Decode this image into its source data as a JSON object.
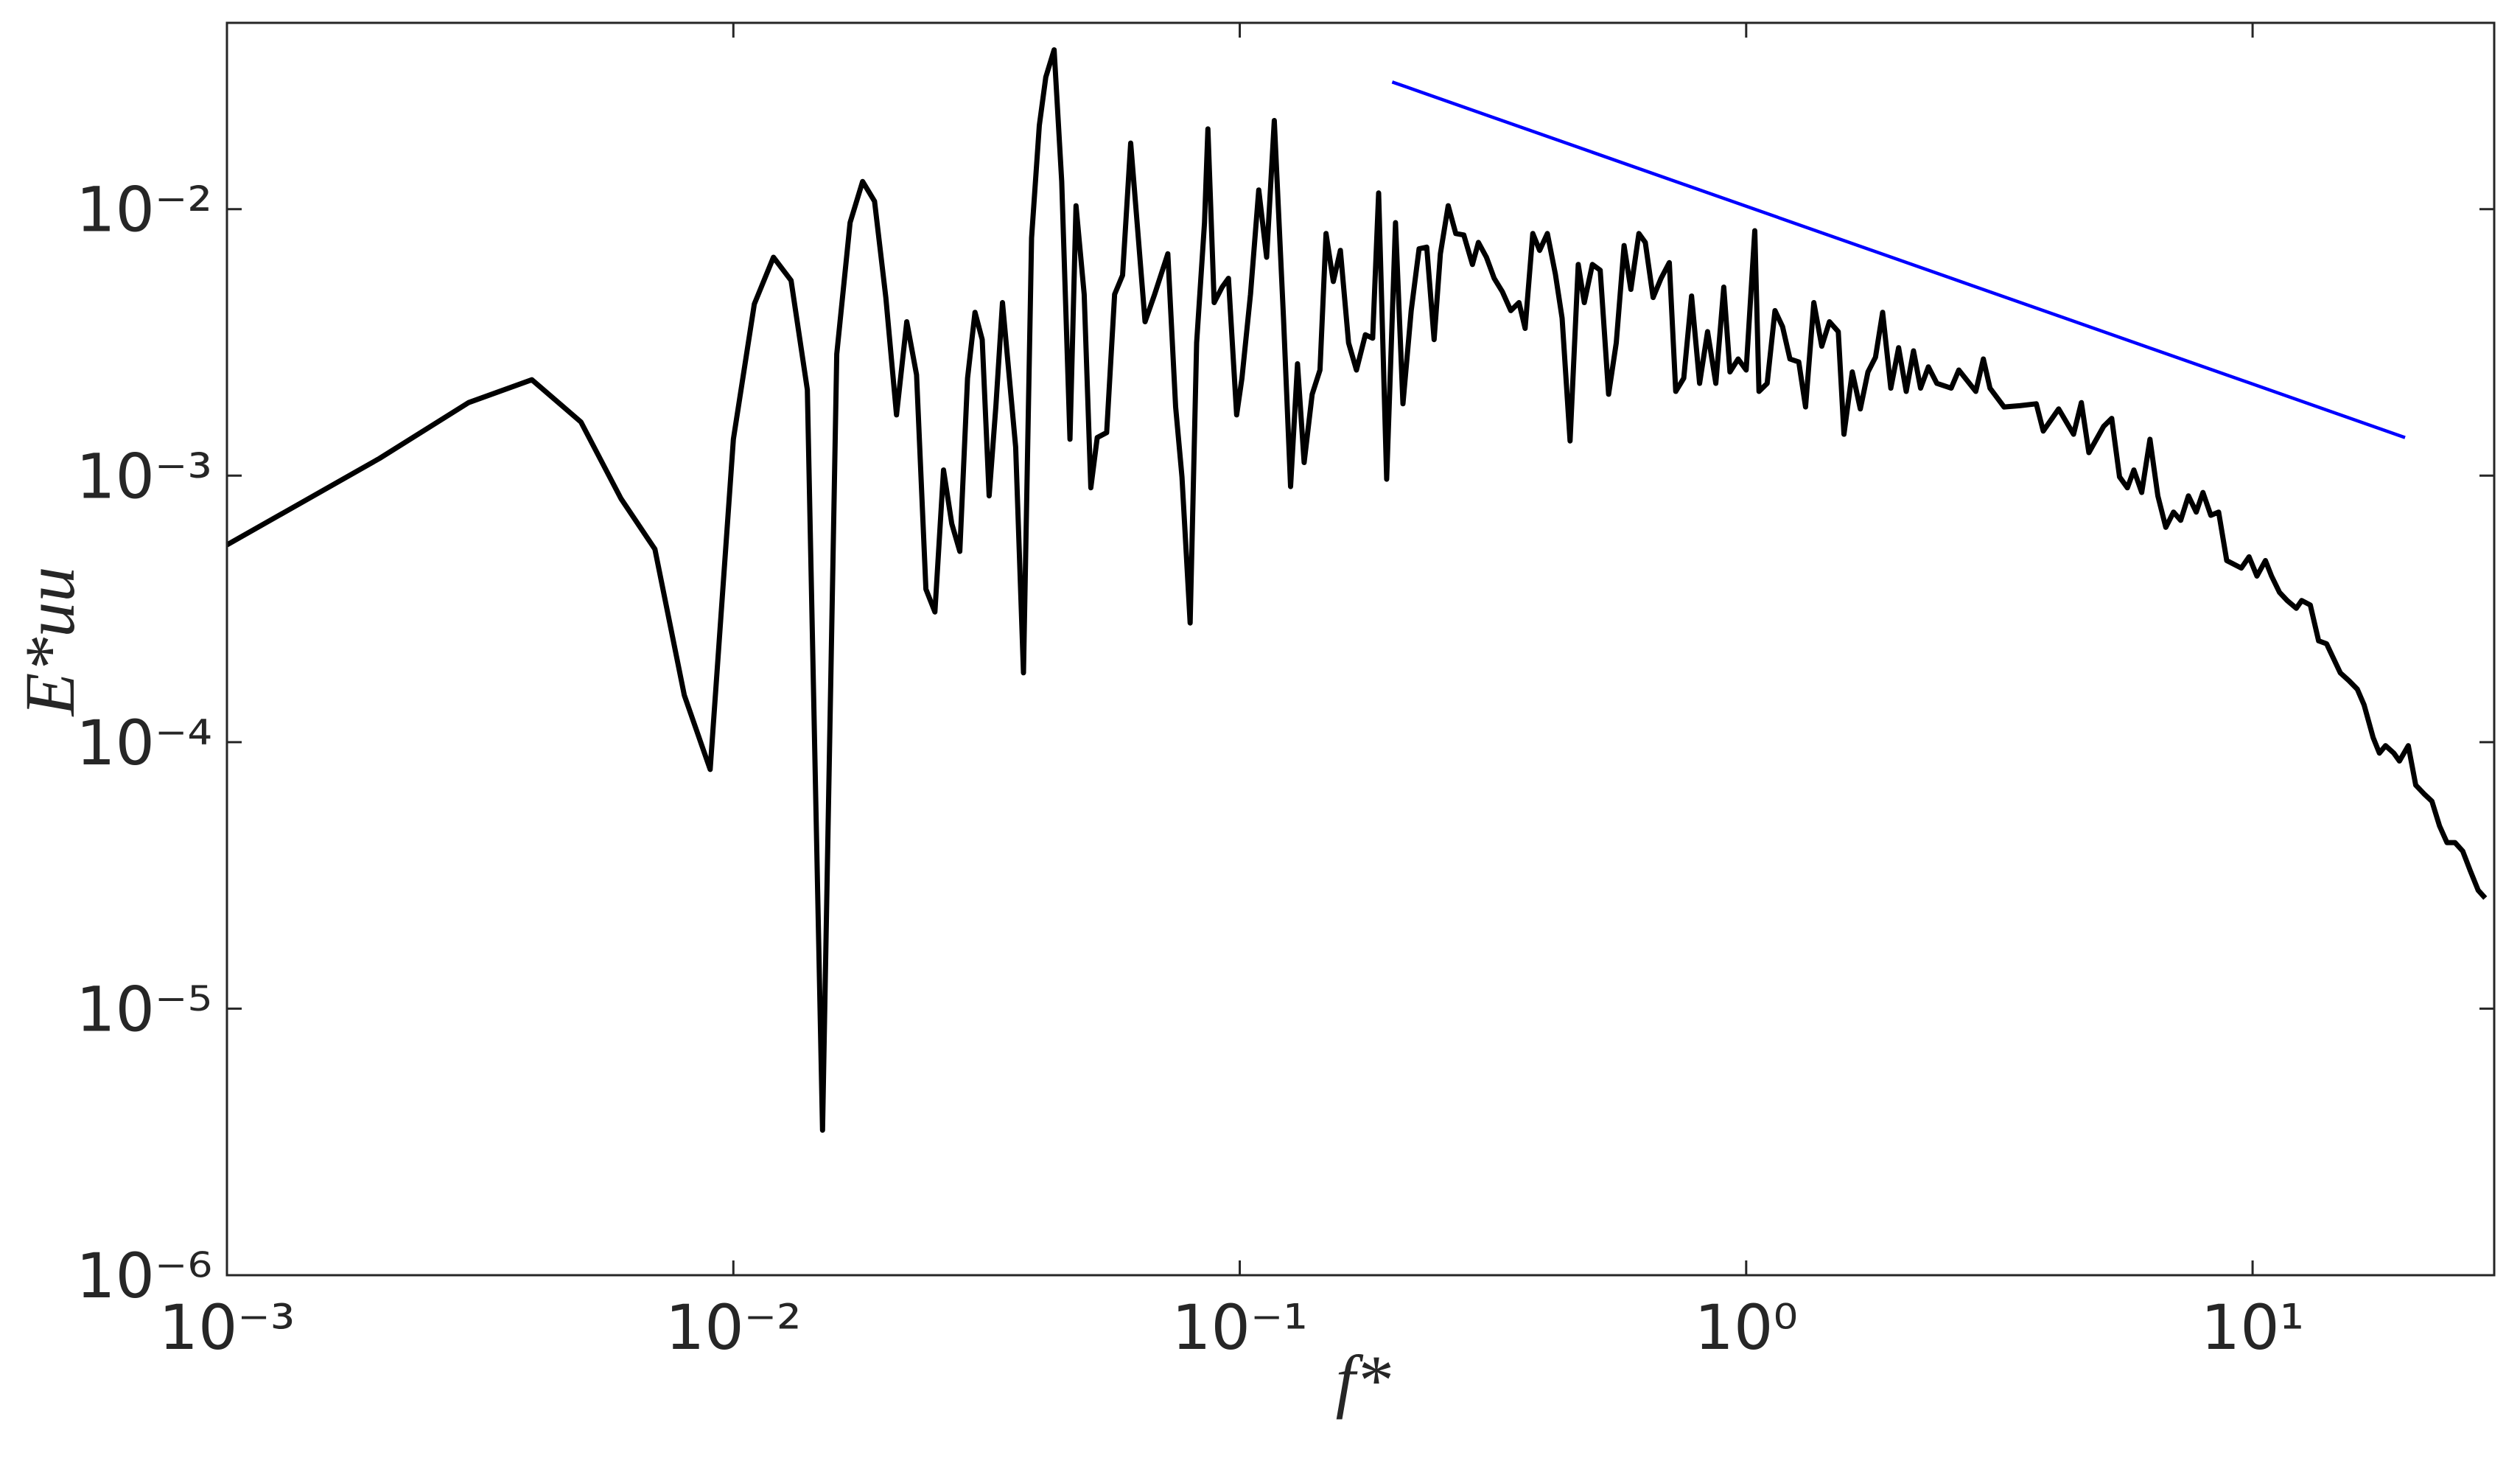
{
  "chart_data": {
    "type": "line",
    "xlabel": "f*",
    "ylabel": "E*uu",
    "xscale": "log",
    "yscale": "log",
    "grid": false,
    "xlim": [
      0.001,
      30
    ],
    "ylim": [
      1e-06,
      0.05
    ],
    "xticks": [
      {
        "value": 0.001,
        "label": "10⁻³"
      },
      {
        "value": 0.01,
        "label": "10⁻²"
      },
      {
        "value": 0.1,
        "label": "10⁻¹"
      },
      {
        "value": 1,
        "label": "10⁰"
      },
      {
        "value": 10,
        "label": "10¹"
      }
    ],
    "yticks": [
      {
        "value": 1e-06,
        "label": "10⁻⁶"
      },
      {
        "value": 1e-05,
        "label": "10⁻⁵"
      },
      {
        "value": 0.0001,
        "label": "10⁻⁴"
      },
      {
        "value": 0.001,
        "label": "10⁻³"
      },
      {
        "value": 0.01,
        "label": "10⁻²"
      }
    ],
    "series": [
      {
        "color": "#000000",
        "x": [
          0.001,
          0.002,
          0.003,
          0.004,
          0.005,
          0.006,
          0.007,
          0.008,
          0.009,
          0.01,
          0.011,
          0.012,
          0.013,
          0.014,
          0.015,
          0.016,
          0.017,
          0.018,
          0.019,
          0.02,
          0.021,
          0.022,
          0.023,
          0.024,
          0.025,
          0.026,
          0.027,
          0.028,
          0.029,
          0.03,
          0.031,
          0.032,
          0.033,
          0.034,
          0.0361,
          0.0374,
          0.0388,
          0.0402,
          0.0414,
          0.043,
          0.0445,
          0.0462,
          0.0475,
          0.0493,
          0.0508,
          0.0523,
          0.0546,
          0.0566,
          0.0587,
          0.0609,
          0.0627,
          0.065,
          0.0679,
          0.0721,
          0.0747,
          0.0769,
          0.0798,
          0.0822,
          0.0852,
          0.0865,
          0.089,
          0.0923,
          0.095,
          0.0986,
          0.101,
          0.105,
          0.109,
          0.113,
          0.117,
          0.122,
          0.126,
          0.13,
          0.134,
          0.139,
          0.144,
          0.148,
          0.153,
          0.158,
          0.164,
          0.17,
          0.177,
          0.183,
          0.188,
          0.195,
          0.203,
          0.21,
          0.218,
          0.226,
          0.234,
          0.242,
          0.249,
          0.258,
          0.267,
          0.277,
          0.288,
          0.296,
          0.307,
          0.318,
          0.33,
          0.343,
          0.356,
          0.366,
          0.379,
          0.391,
          0.405,
          0.42,
          0.433,
          0.449,
          0.466,
          0.479,
          0.497,
          0.515,
          0.535,
          0.554,
          0.574,
          0.592,
          0.614,
          0.632,
          0.655,
          0.679,
          0.705,
          0.726,
          0.753,
          0.78,
          0.809,
          0.839,
          0.871,
          0.903,
          0.929,
          0.964,
          1.0,
          1.04,
          1.06,
          1.1,
          1.14,
          1.18,
          1.22,
          1.27,
          1.31,
          1.36,
          1.41,
          1.46,
          1.52,
          1.56,
          1.62,
          1.68,
          1.74,
          1.8,
          1.86,
          1.93,
          2.0,
          2.07,
          2.14,
          2.21,
          2.29,
          2.38,
          2.54,
          2.63,
          2.84,
          2.94,
          3.03,
          3.23,
          3.47,
          3.74,
          3.86,
          4.14,
          4.43,
          4.59,
          4.75,
          5.08,
          5.27,
          5.46,
          5.66,
          5.83,
          6.04,
          6.27,
          6.5,
          6.74,
          6.98,
          7.21,
          7.47,
          7.74,
          7.98,
          8.27,
          8.57,
          8.89,
          9.5,
          9.84,
          10.2,
          10.6,
          10.9,
          11.3,
          11.7,
          12.2,
          12.5,
          13.0,
          13.5,
          14.0,
          14.9,
          15.5,
          16.1,
          16.6,
          17.3,
          17.8,
          18.3,
          19.0,
          19.5,
          20.3,
          21.0,
          21.8,
          22.6,
          23.4,
          24.2,
          25.1,
          26.0,
          26.9,
          27.9,
          28.8
        ],
        "values": [
          0.00055,
          0.00116,
          0.00188,
          0.00229,
          0.00159,
          0.00082,
          0.00053,
          0.00015,
          7.9e-05,
          0.00137,
          0.0044,
          0.0066,
          0.0054,
          0.0021,
          3.5e-06,
          0.00286,
          0.0089,
          0.0127,
          0.0107,
          0.00466,
          0.00169,
          0.00378,
          0.00239,
          0.000375,
          0.000308,
          0.00105,
          0.00066,
          0.00052,
          0.00232,
          0.0041,
          0.00324,
          0.00084,
          0.00183,
          0.00446,
          0.00128,
          0.000182,
          0.0078,
          0.0206,
          0.0313,
          0.0396,
          0.0127,
          0.00137,
          0.0103,
          0.00479,
          0.0009,
          0.00139,
          0.00145,
          0.00479,
          0.00565,
          0.0177,
          0.0089,
          0.00378,
          0.00479,
          0.0068,
          0.00181,
          0.00099,
          0.00028,
          0.00315,
          0.0089,
          0.02,
          0.00446,
          0.0051,
          0.0055,
          0.00169,
          0.00232,
          0.00479,
          0.0118,
          0.0066,
          0.0215,
          0.0039,
          0.00091,
          0.00263,
          0.00112,
          0.00202,
          0.00249,
          0.0081,
          0.00535,
          0.007,
          0.00315,
          0.00249,
          0.00338,
          0.00328,
          0.0115,
          0.00097,
          0.0089,
          0.00186,
          0.00416,
          0.0071,
          0.0072,
          0.00324,
          0.0068,
          0.0103,
          0.0081,
          0.008,
          0.0062,
          0.0075,
          0.0066,
          0.0055,
          0.0049,
          0.00416,
          0.00446,
          0.00357,
          0.0081,
          0.007,
          0.0081,
          0.0057,
          0.0039,
          0.00135,
          0.0062,
          0.00446,
          0.0062,
          0.0059,
          0.00202,
          0.00315,
          0.0073,
          0.005,
          0.0081,
          0.0075,
          0.00466,
          0.0055,
          0.0063,
          0.00207,
          0.00232,
          0.00472,
          0.00222,
          0.00347,
          0.00222,
          0.0051,
          0.00245,
          0.00274,
          0.00249,
          0.0083,
          0.00207,
          0.00222,
          0.00416,
          0.00362,
          0.00274,
          0.00267,
          0.00181,
          0.00446,
          0.00306,
          0.00378,
          0.00347,
          0.00143,
          0.00245,
          0.00178,
          0.00245,
          0.00278,
          0.0041,
          0.00213,
          0.00302,
          0.00207,
          0.00294,
          0.00213,
          0.00256,
          0.00222,
          0.00213,
          0.00249,
          0.00207,
          0.00274,
          0.00213,
          0.00181,
          0.00183,
          0.00186,
          0.00147,
          0.00178,
          0.00143,
          0.00188,
          0.00122,
          0.00153,
          0.00164,
          0.00099,
          0.0009,
          0.00105,
          0.000865,
          0.00137,
          0.00084,
          0.00064,
          0.00073,
          0.00068,
          0.00084,
          0.00073,
          0.000865,
          0.00071,
          0.00073,
          0.00048,
          0.00045,
          0.000496,
          0.00042,
          0.00048,
          0.00042,
          0.000365,
          0.00034,
          0.000318,
          0.00034,
          0.000327,
          0.00024,
          0.000234,
          0.000182,
          0.00017,
          0.000158,
          0.000138,
          0.000104,
          9.1e-05,
          9.7e-05,
          9.1e-05,
          8.5e-05,
          9.7e-05,
          6.9e-05,
          6.4e-05,
          6e-05,
          4.85e-05,
          4.2e-05,
          4.2e-05,
          3.9e-05,
          3.3e-05,
          2.78e-05,
          2.6e-05
        ]
      },
      {
        "color": "#0000ff",
        "x": [
          0.2,
          20
        ],
        "values": [
          0.03,
          0.00139
        ]
      }
    ]
  }
}
